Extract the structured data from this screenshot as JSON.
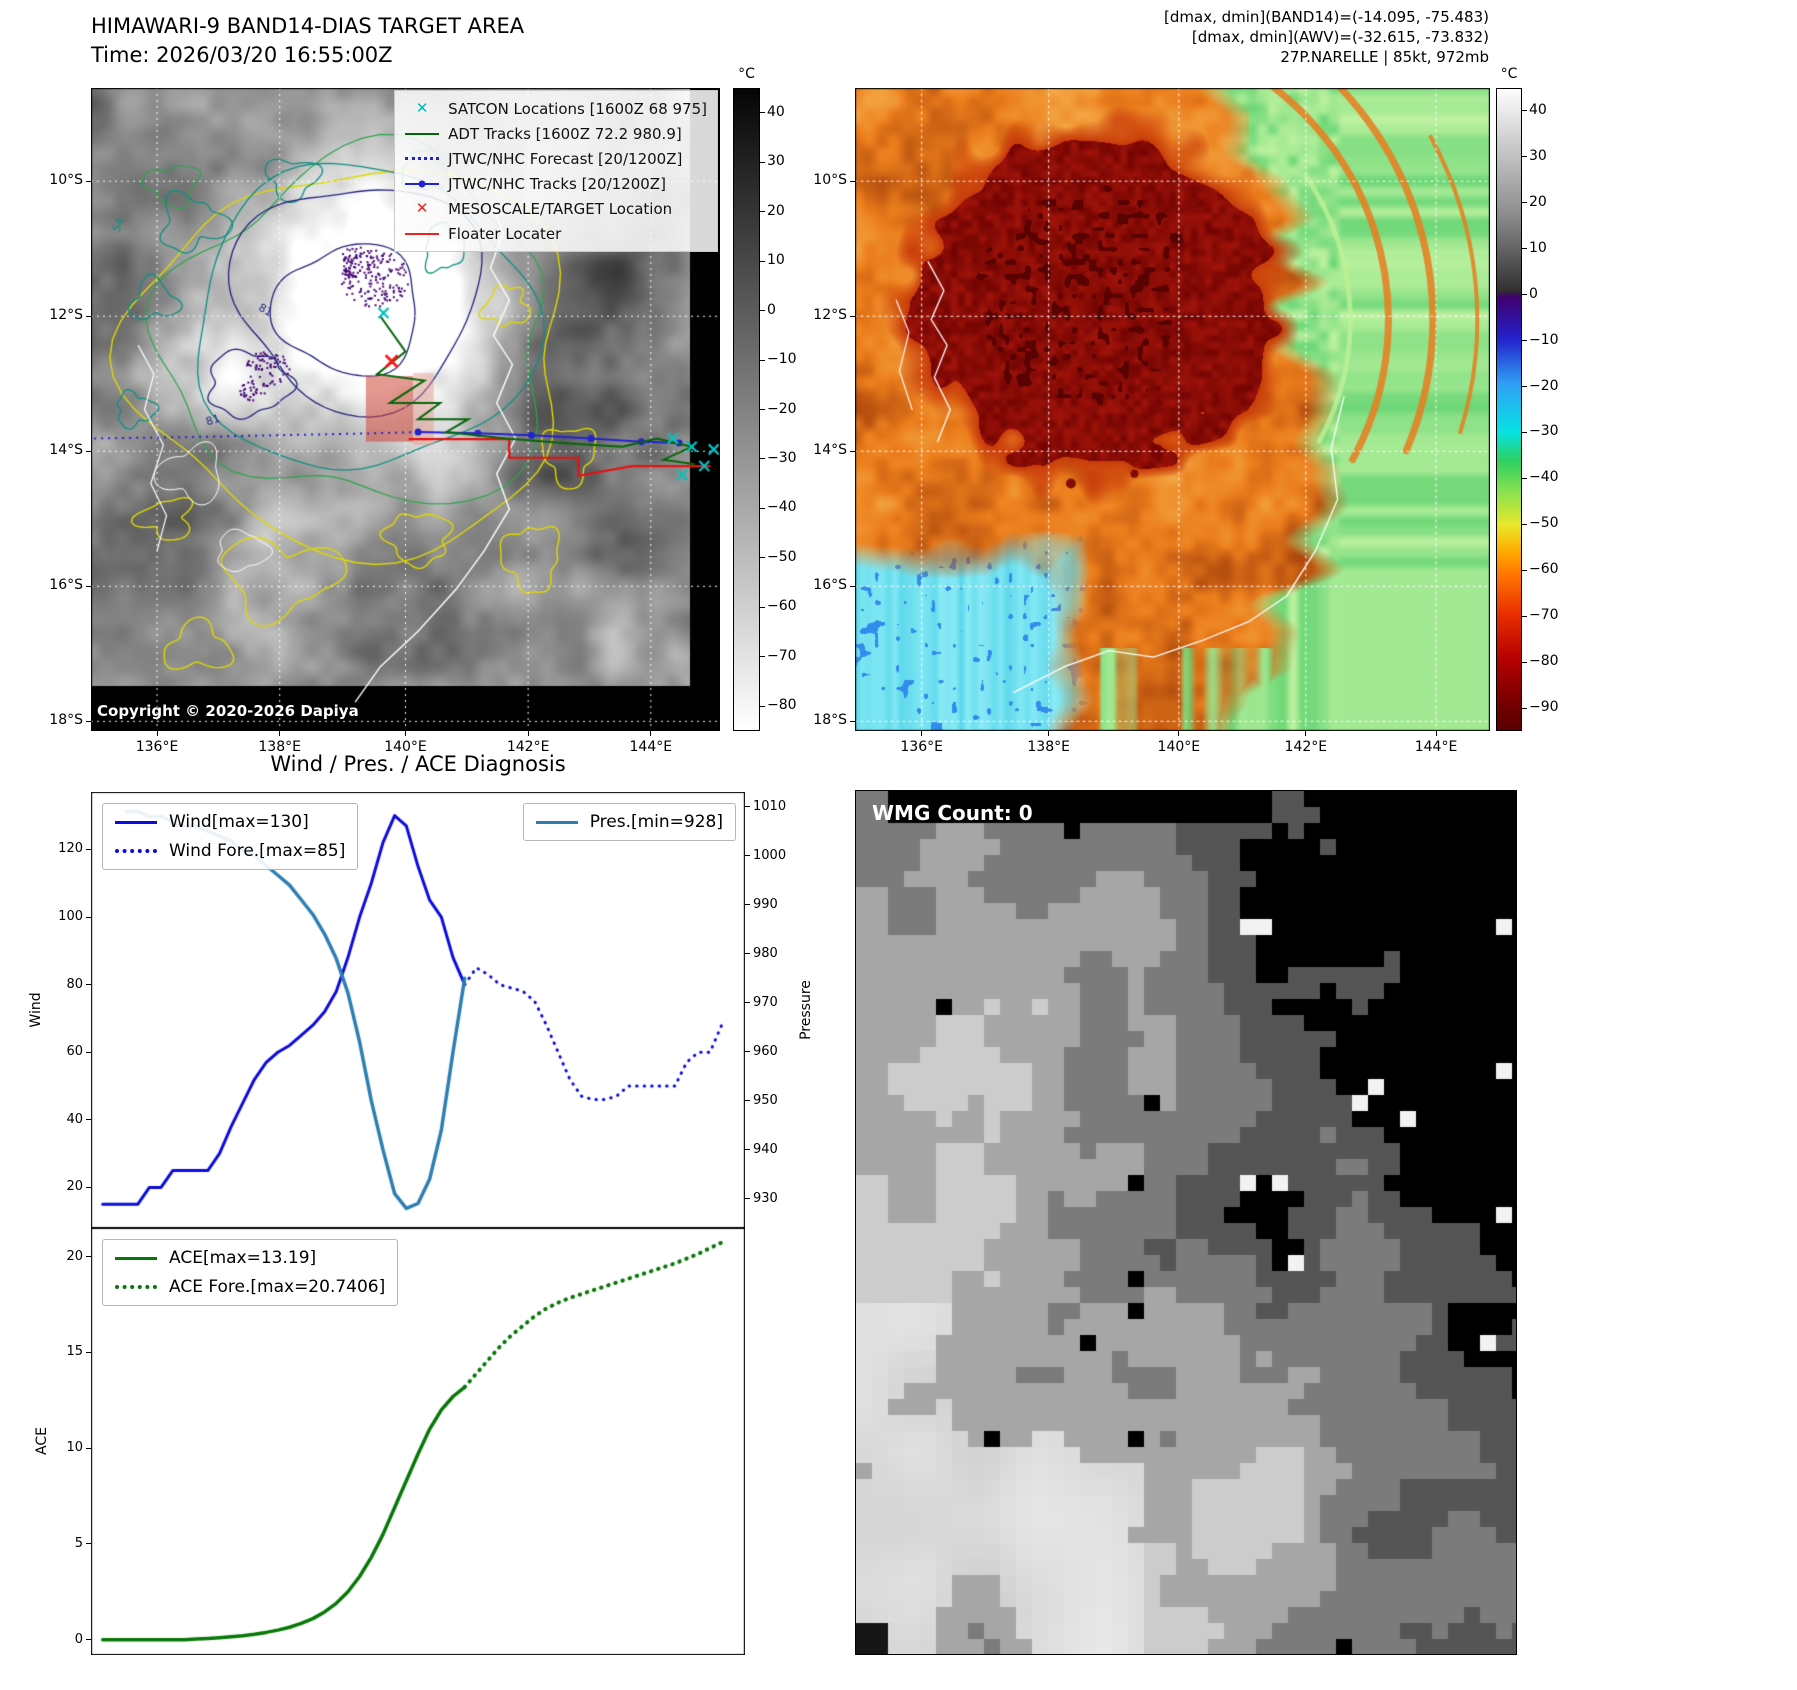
{
  "figure": {
    "bg": "#ffffff"
  },
  "top_left": {
    "title": "HIMAWARI-9 BAND14-DIAS TARGET AREA",
    "subtitle": "Time: 2026/03/20 16:55:00Z",
    "copyright": "Copyright © 2020-2026 Dapiya",
    "colorbar_unit": "°C",
    "colorbar_ticks": [
      "40",
      "30",
      "20",
      "10",
      "0",
      "−10",
      "−20",
      "−30",
      "−40",
      "−50",
      "−60",
      "−70",
      "−80"
    ],
    "x_ticks": [
      "136°E",
      "138°E",
      "140°E",
      "142°E",
      "144°E"
    ],
    "y_ticks": [
      "10°S",
      "12°S",
      "14°S",
      "16°S",
      "18°S"
    ],
    "contour_labels": [
      "54",
      "81",
      "81"
    ],
    "legend": [
      {
        "label": "SATCON Locations [1600Z 68 975]",
        "marker": "x",
        "color": "#00b8b8"
      },
      {
        "label": "ADT Tracks [1600Z 72.2 980.9]",
        "marker": "line",
        "color": "#056608"
      },
      {
        "label": "JTWC/NHC Forecast [20/1200Z]",
        "marker": "dotted",
        "color": "#2323cd"
      },
      {
        "label": "JTWC/NHC Tracks [20/1200Z]",
        "marker": "line-dot",
        "color": "#2323cd"
      },
      {
        "label": "MESOSCALE/TARGET Location",
        "marker": "x",
        "color": "#ee2222"
      },
      {
        "label": "Floater Locater",
        "marker": "line",
        "color": "#ee2222"
      }
    ]
  },
  "top_right": {
    "header_lines": [
      "[dmax, dmin](BAND14)=(-14.095, -75.483)",
      "[dmax, dmin](AWV)=(-32.615, -73.832)",
      "27P.NARELLE | 85kt, 972mb"
    ],
    "colorbar_unit": "°C",
    "colorbar_ticks": [
      "40",
      "30",
      "20",
      "10",
      "0",
      "−10",
      "−20",
      "−30",
      "−40",
      "−50",
      "−60",
      "−70",
      "−80",
      "−90"
    ],
    "x_ticks": [
      "136°E",
      "138°E",
      "140°E",
      "142°E",
      "144°E"
    ],
    "y_ticks": [
      "10°S",
      "12°S",
      "14°S",
      "16°S",
      "18°S"
    ]
  },
  "bottom_left": {
    "section_title": "Wind / Pres. / ACE Diagnosis"
  },
  "bottom_right": {
    "wmg_label": "WMG Count: 0"
  },
  "chart_data": [
    {
      "type": "line",
      "title": "Wind / Pres. / ACE Diagnosis (upper panel)",
      "xlim": [
        -1,
        55
      ],
      "ylabel_left": "Wind",
      "ylabel_right": "Pressure",
      "ylim_left": [
        8,
        137
      ],
      "ylim_right": [
        924,
        1013
      ],
      "yticks_left": [
        20,
        40,
        60,
        80,
        100,
        120
      ],
      "yticks_right": [
        930,
        940,
        950,
        960,
        970,
        980,
        990,
        1000,
        1010
      ],
      "series": [
        {
          "name": "Wind[max=130]",
          "axis": "left",
          "style": "solid",
          "color": "#0b0bdf",
          "width": 3,
          "x_start": 0,
          "values": [
            15,
            15,
            15,
            15,
            20,
            20,
            25,
            25,
            25,
            25,
            30,
            38,
            45,
            52,
            57,
            60,
            62,
            65,
            68,
            72,
            78,
            88,
            100,
            110,
            122,
            130,
            127,
            115,
            105,
            100,
            88,
            80
          ]
        },
        {
          "name": "Wind Fore.[max=85]",
          "axis": "left",
          "style": "dotted",
          "color": "#0b0bdf",
          "width": 3,
          "x_start": 31,
          "values": [
            80,
            85,
            83,
            80,
            79,
            78,
            75,
            68,
            60,
            52,
            47,
            46,
            46,
            47,
            50,
            50,
            50,
            50,
            50,
            57,
            60,
            60,
            68
          ]
        },
        {
          "name": "Pres.[min=928]",
          "axis": "right",
          "style": "solid",
          "color": "#2e7eb4",
          "width": 3.5,
          "x_start": 2,
          "values": [
            1009,
            1009,
            1008,
            1008,
            1007,
            1006,
            1006,
            1005,
            1004,
            1003,
            1001,
            1000,
            998,
            996,
            994,
            991,
            988,
            984,
            979,
            972,
            962,
            950,
            940,
            931,
            928,
            929,
            934,
            944,
            960,
            975
          ]
        }
      ]
    },
    {
      "type": "line",
      "title": "ACE (lower panel)",
      "xlim": [
        -1,
        55
      ],
      "ylabel_left": "ACE",
      "ylim_left": [
        -0.8,
        21.5
      ],
      "yticks_left": [
        0,
        5,
        10,
        15,
        20
      ],
      "series": [
        {
          "name": "ACE[max=13.19]",
          "axis": "left",
          "style": "solid",
          "color": "#067806",
          "width": 3.5,
          "x_start": 0,
          "values": [
            0,
            0,
            0,
            0,
            0,
            0,
            0,
            0,
            0.03,
            0.06,
            0.1,
            0.15,
            0.2,
            0.28,
            0.38,
            0.5,
            0.65,
            0.85,
            1.1,
            1.45,
            1.9,
            2.5,
            3.3,
            4.3,
            5.5,
            6.9,
            8.3,
            9.7,
            11.0,
            12.0,
            12.7,
            13.19
          ]
        },
        {
          "name": "ACE Fore.[max=20.7406]",
          "axis": "left",
          "style": "dotted",
          "color": "#067806",
          "width": 4,
          "x_start": 31,
          "values": [
            13.19,
            13.9,
            14.6,
            15.3,
            15.9,
            16.4,
            16.9,
            17.3,
            17.6,
            17.85,
            18.05,
            18.25,
            18.45,
            18.65,
            18.85,
            19.05,
            19.25,
            19.45,
            19.65,
            19.9,
            20.15,
            20.45,
            20.7406
          ]
        }
      ]
    }
  ]
}
